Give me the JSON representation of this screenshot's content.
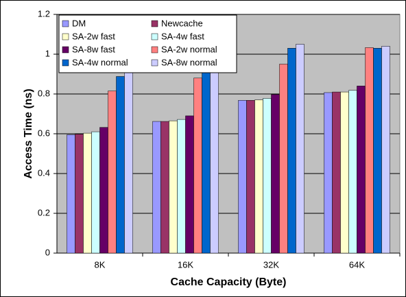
{
  "chart_data": {
    "type": "bar",
    "x_label": "Cache Capacity (Byte)",
    "y_label": "Access Time (ns)",
    "categories": [
      "8K",
      "16K",
      "32K",
      "64K"
    ],
    "series": [
      {
        "name": "DM",
        "color": "#9999ff",
        "values": [
          0.595,
          0.662,
          0.768,
          0.807
        ]
      },
      {
        "name": "Newcache",
        "color": "#993366",
        "values": [
          0.598,
          0.662,
          0.768,
          0.81
        ]
      },
      {
        "name": "SA-2w fast",
        "color": "#ffffcc",
        "values": [
          0.603,
          0.665,
          0.77,
          0.81
        ]
      },
      {
        "name": "SA-4w fast",
        "color": "#ccffff",
        "values": [
          0.61,
          0.672,
          0.778,
          0.818
        ]
      },
      {
        "name": "SA-8w fast",
        "color": "#660066",
        "values": [
          0.632,
          0.69,
          0.797,
          0.84
        ]
      },
      {
        "name": "SA-2w normal",
        "color": "#ff8080",
        "values": [
          0.815,
          0.88,
          0.95,
          1.033
        ]
      },
      {
        "name": "SA-4w normal",
        "color": "#0066cc",
        "values": [
          0.888,
          0.917,
          1.03,
          1.03
        ]
      },
      {
        "name": "SA-8w normal",
        "color": "#ccccff",
        "values": [
          0.957,
          0.972,
          1.05,
          1.04
        ]
      }
    ],
    "ylim": [
      0,
      1.2
    ],
    "yticks": [
      0,
      0.2,
      0.4,
      0.6,
      0.8,
      1,
      1.2
    ],
    "grid": true,
    "legend": "top-left",
    "plot_background": "#c0c0c0"
  }
}
